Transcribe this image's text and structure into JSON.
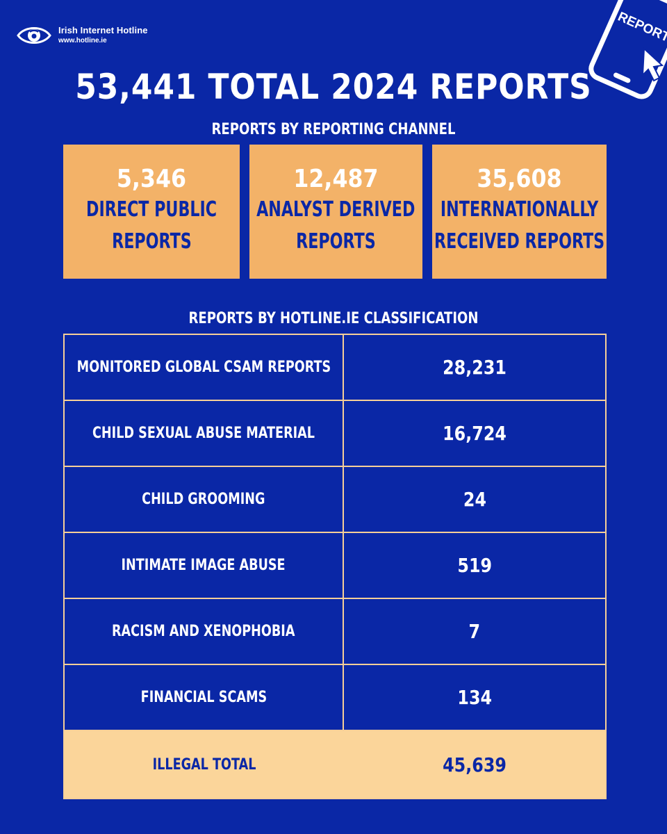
{
  "logo": {
    "name": "Irish Internet Hotline",
    "url": "www.hotline.ie",
    "icon": "eye-icon"
  },
  "phone_graphic": {
    "label": "REPORT",
    "icon": "phone-report-icon"
  },
  "title": "53,441 TOTAL 2024 REPORTS",
  "channel": {
    "heading": "REPORTS BY REPORTING CHANNEL",
    "cards": [
      {
        "value": "5,346",
        "label_line1": "DIRECT PUBLIC",
        "label_line2": "REPORTS"
      },
      {
        "value": "12,487",
        "label_line1": "ANALYST DERIVED",
        "label_line2": "REPORTS"
      },
      {
        "value": "35,608",
        "label_line1": "INTERNATIONALLY",
        "label_line2": "RECEIVED REPORTS"
      }
    ]
  },
  "classification": {
    "heading": "REPORTS BY HOTLINE.IE CLASSIFICATION",
    "rows": [
      {
        "label": "MONITORED GLOBAL CSAM REPORTS",
        "value": "28,231"
      },
      {
        "label": "CHILD SEXUAL ABUSE MATERIAL",
        "value": "16,724"
      },
      {
        "label": "CHILD GROOMING",
        "value": "24"
      },
      {
        "label": "INTIMATE IMAGE ABUSE",
        "value": "519"
      },
      {
        "label": "RACISM AND XENOPHOBIA",
        "value": "7"
      },
      {
        "label": "FINANCIAL SCAMS",
        "value": "134"
      }
    ],
    "total": {
      "label": "ILLEGAL TOTAL",
      "value": "45,639"
    }
  },
  "colors": {
    "background": "#0a27a6",
    "card": "#f3b268",
    "total_row": "#fbd59a",
    "border": "#f6cf98"
  }
}
